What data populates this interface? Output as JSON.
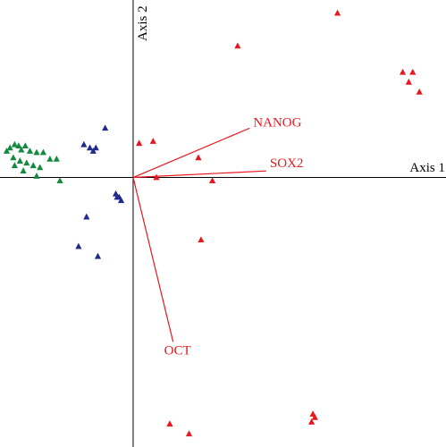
{
  "chart_data": {
    "type": "scatter",
    "x_axis_label": "Axis 1",
    "y_axis_label": "Axis 2",
    "xlim": [
      -2.0,
      4.7
    ],
    "ylim": [
      -4.1,
      2.7
    ],
    "series": [
      {
        "color": "#e8171f",
        "points": [
          [
            3.07,
            2.5
          ],
          [
            1.57,
            2.0
          ],
          [
            4.05,
            1.6
          ],
          [
            4.2,
            1.6
          ],
          [
            4.14,
            1.45
          ],
          [
            4.3,
            1.3
          ],
          [
            0.09,
            0.52
          ],
          [
            0.3,
            0.55
          ],
          [
            0.98,
            0.3
          ],
          [
            0.35,
            0.0
          ],
          [
            1.19,
            -0.05
          ],
          [
            1.02,
            -0.95
          ],
          [
            2.7,
            -3.6
          ],
          [
            2.73,
            -3.65
          ],
          [
            2.68,
            -3.72
          ],
          [
            0.55,
            -3.75
          ],
          [
            0.84,
            -3.9
          ]
        ]
      },
      {
        "color": "#1f2a8c",
        "points": [
          [
            -0.42,
            0.75
          ],
          [
            -0.74,
            0.5
          ],
          [
            -0.65,
            0.45
          ],
          [
            -0.6,
            0.4
          ],
          [
            -0.56,
            0.45
          ],
          [
            -0.26,
            -0.25
          ],
          [
            -0.21,
            -0.3
          ],
          [
            -0.18,
            -0.35
          ],
          [
            -0.24,
            -0.3
          ],
          [
            -0.7,
            -0.6
          ],
          [
            -0.82,
            -1.05
          ],
          [
            -0.53,
            -1.2
          ]
        ]
      },
      {
        "color": "#138a3f",
        "points": [
          [
            -1.9,
            0.4
          ],
          [
            -1.85,
            0.45
          ],
          [
            -1.78,
            0.5
          ],
          [
            -1.72,
            0.48
          ],
          [
            -1.68,
            0.42
          ],
          [
            -1.62,
            0.48
          ],
          [
            -1.55,
            0.4
          ],
          [
            -1.45,
            0.38
          ],
          [
            -1.35,
            0.38
          ],
          [
            -1.25,
            0.28
          ],
          [
            -1.15,
            0.28
          ],
          [
            -1.8,
            0.3
          ],
          [
            -1.7,
            0.25
          ],
          [
            -1.6,
            0.22
          ],
          [
            -1.65,
            0.1
          ],
          [
            -1.5,
            0.18
          ],
          [
            -1.4,
            0.15
          ],
          [
            -1.78,
            0.18
          ],
          [
            -1.45,
            0.02
          ],
          [
            -1.1,
            -0.05
          ]
        ]
      }
    ],
    "vectors": [
      {
        "label": "NANOG",
        "x": 1.75,
        "y": 0.75
      },
      {
        "label": "SOX2",
        "x": 2.0,
        "y": 0.1
      },
      {
        "label": "OCT",
        "x": 0.6,
        "y": -2.5
      }
    ],
    "vector_color": "#e8171f"
  }
}
